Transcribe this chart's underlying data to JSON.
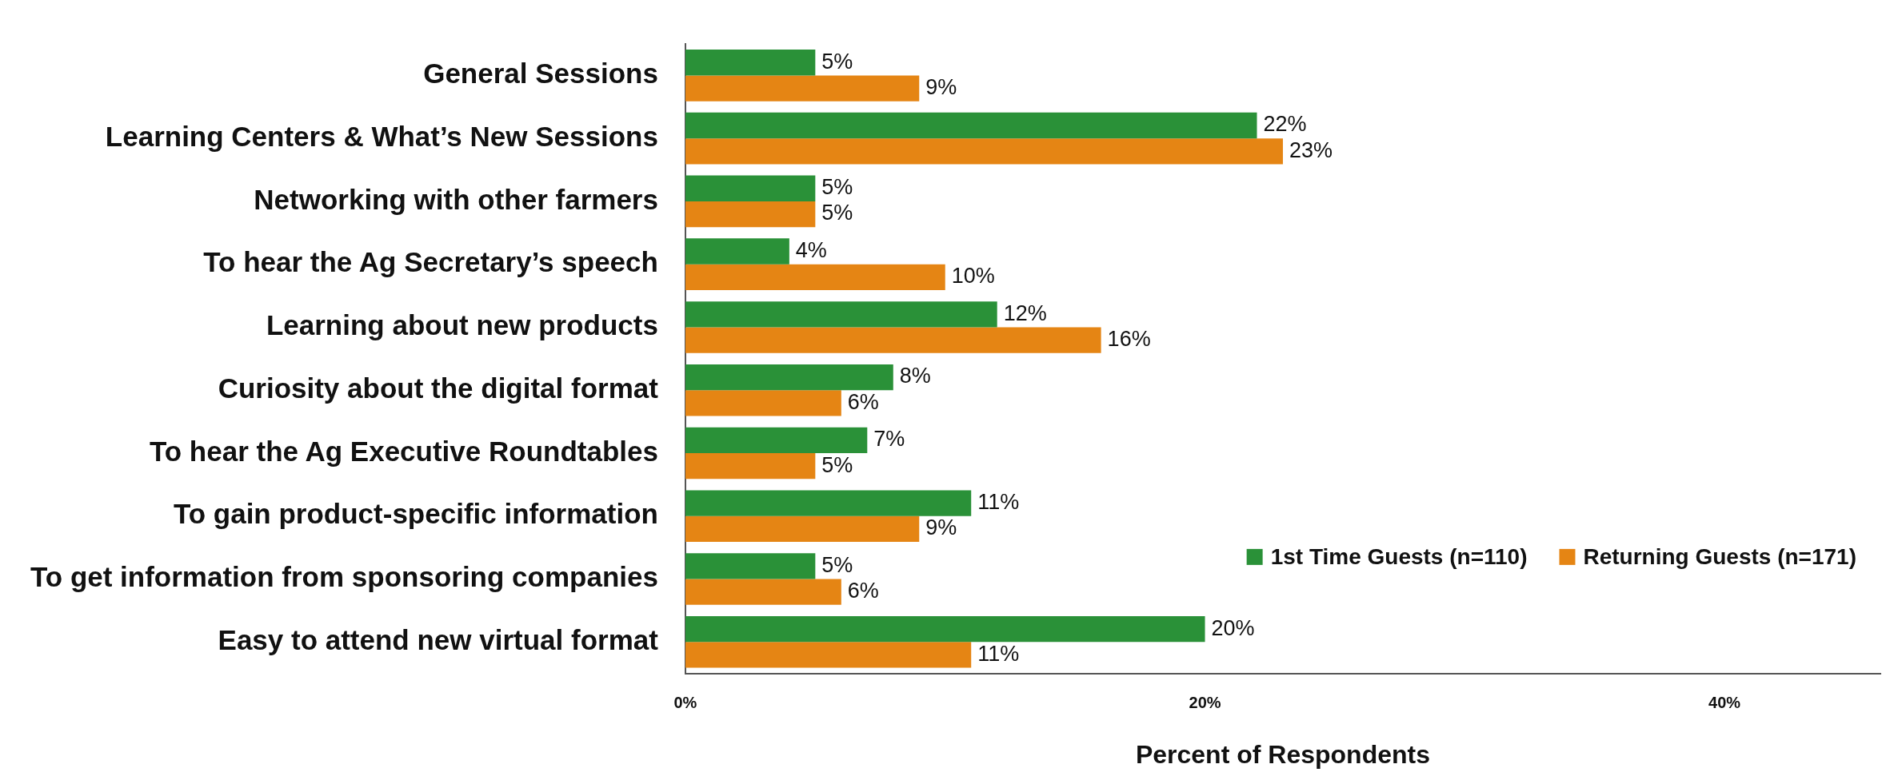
{
  "chart_data": {
    "type": "bar",
    "orientation": "horizontal",
    "xlabel": "Percent of Respondents",
    "categories": [
      "General Sessions",
      "Learning Centers & What’s New Sessions",
      "Networking with other farmers",
      "To hear the Ag Secretary’s speech",
      "Learning about new products",
      "Curiosity about the digital format",
      "To hear the Ag Executive Roundtables",
      "To gain product-specific information",
      "To get information from sponsoring companies",
      "Easy to attend new virtual format"
    ],
    "series": [
      {
        "name": "1st Time Guests (n=110)",
        "color": "#2a9138",
        "values": [
          5,
          22,
          5,
          4,
          12,
          8,
          7,
          11,
          5,
          20
        ],
        "value_labels": [
          "5%",
          "22%",
          "5%",
          "4%",
          "12%",
          "8%",
          "7%",
          "11%",
          "5%",
          "20%"
        ]
      },
      {
        "name": "Returning Guests (n=171)",
        "color": "#e58514",
        "values": [
          9,
          23,
          5,
          10,
          16,
          6,
          5,
          9,
          6,
          11
        ],
        "value_labels": [
          "9%",
          "23%",
          "5%",
          "10%",
          "16%",
          "6%",
          "5%",
          "9%",
          "6%",
          "11%"
        ]
      }
    ],
    "xlim": [
      0,
      46
    ],
    "xticks": [
      {
        "value": 0,
        "label": "0%"
      },
      {
        "value": 20,
        "label": "20%"
      },
      {
        "value": 40,
        "label": "40%"
      }
    ],
    "legend": "bottom right",
    "grid": false
  }
}
